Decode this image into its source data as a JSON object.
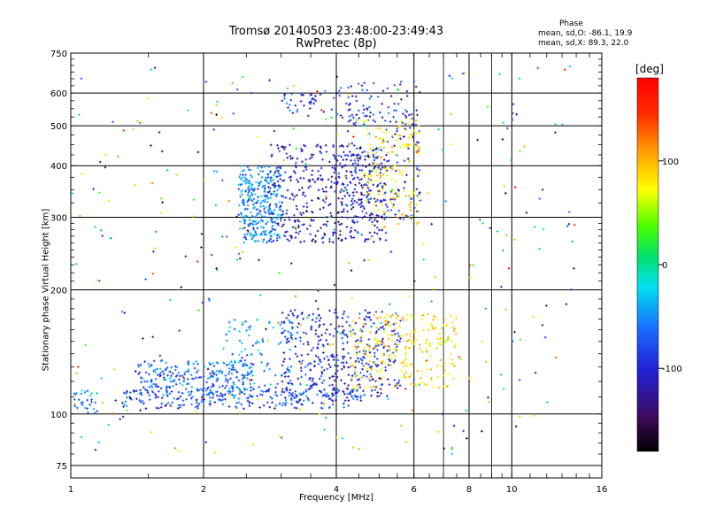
{
  "header": {
    "title": "Tromsø 20140503 23:48:00-23:49:43",
    "subtitle": "RwPretec (8p)",
    "stats_title": "Phase",
    "stats_o": "mean, sd,O: -86.1, 19.9",
    "stats_x": "mean, sd,X:  89.3, 22.0"
  },
  "colorbar": {
    "unit_label": "[deg]",
    "ticks": [
      100,
      0,
      -100
    ],
    "range": [
      -180,
      180
    ]
  },
  "chart_data": {
    "type": "scatter",
    "title": "Tromsø 20140503 23:48:00-23:49:43",
    "subtitle": "RwPretec (8p)",
    "xlabel": "Frequency [MHz]",
    "ylabel": "Stationary phase Virtual Height [km]",
    "xscale": "log",
    "yscale": "log",
    "xlim": [
      1,
      16
    ],
    "ylim": [
      70,
      750
    ],
    "xticks": [
      1,
      2,
      4,
      6,
      8,
      10,
      16
    ],
    "yticks": [
      75,
      100,
      200,
      300,
      400,
      500,
      600,
      750
    ],
    "grid": true,
    "color_by": "phase [deg]",
    "traces": [
      {
        "name": "",
        "x_range": [
          1.0,
          1.15
        ],
        "height_range": [
          100,
          115
        ],
        "phase": -60,
        "n": 30
      },
      {
        "name": "",
        "x_range": [
          1.3,
          4.6
        ],
        "height_range": [
          103,
          115
        ],
        "phase": -85,
        "n": 240
      },
      {
        "name": "",
        "x_range": [
          1.4,
          2.6
        ],
        "height_range": [
          110,
          135
        ],
        "phase": -70,
        "n": 260
      },
      {
        "name": "",
        "x_range": [
          2.2,
          3.2
        ],
        "height_range": [
          115,
          170
        ],
        "phase": -55,
        "n": 90
      },
      {
        "name": "",
        "x_range": [
          3.0,
          5.6
        ],
        "height_range": [
          110,
          180
        ],
        "phase": -100,
        "n": 380
      },
      {
        "name": "",
        "x_range": [
          4.3,
          7.5
        ],
        "height_range": [
          115,
          175
        ],
        "phase": 110,
        "n": 240
      },
      {
        "name": "",
        "x_range": [
          2.4,
          3.0
        ],
        "height_range": [
          260,
          400
        ],
        "phase": -60,
        "n": 300
      },
      {
        "name": "",
        "x_range": [
          2.8,
          5.2
        ],
        "height_range": [
          260,
          450
        ],
        "phase": -110,
        "n": 450
      },
      {
        "name": "",
        "x_range": [
          4.2,
          6.2
        ],
        "height_range": [
          290,
          640
        ],
        "phase": -100,
        "n": 200
      },
      {
        "name": "",
        "x_range": [
          4.6,
          6.2
        ],
        "height_range": [
          280,
          520
        ],
        "phase": 110,
        "n": 150
      },
      {
        "name": "",
        "x_range": [
          3.0,
          4.8
        ],
        "height_range": [
          520,
          620
        ],
        "phase": -90,
        "n": 60
      },
      {
        "name": "",
        "x_range": [
          1.0,
          14.0
        ],
        "height_range": [
          80,
          700
        ],
        "phase": 0,
        "n": 350
      }
    ]
  }
}
